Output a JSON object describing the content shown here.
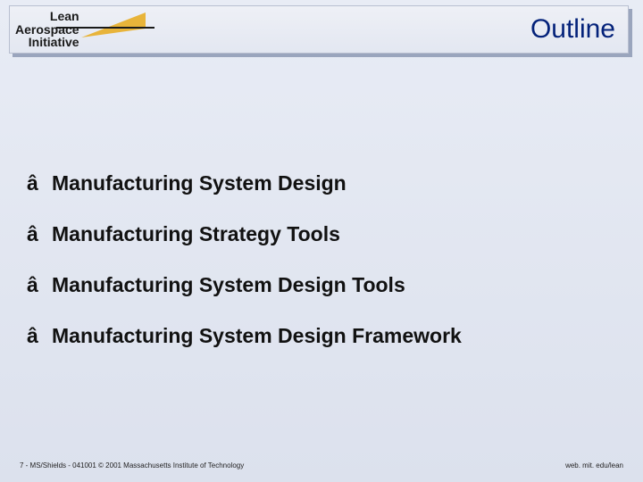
{
  "header": {
    "logo": {
      "line1": "Lean",
      "line2": "Aerospace",
      "line3": "Initiative"
    },
    "title": "Outline"
  },
  "outline": {
    "bullet": "â",
    "items": [
      "Manufacturing System Design",
      "Manufacturing Strategy Tools",
      "Manufacturing System Design Tools",
      "Manufacturing System Design Framework"
    ]
  },
  "footer": {
    "left": "7 - MS/Shields - 041001 © 2001 Massachusetts Institute of Technology",
    "right": "web. mit. edu/lean"
  },
  "style": {
    "background_top": "#e8ecf5",
    "background_bottom": "#dce1ed",
    "header_bg_top": "#eef0f6",
    "header_bg_bottom": "#e3e7f1",
    "header_border": "#b8bfd0",
    "header_shadow": "#9aa5bd",
    "title_color": "#04227a",
    "text_color": "#111111",
    "logo_swoosh": "#e8b43a",
    "title_fontsize": 30,
    "item_fontsize": 23,
    "logo_fontsize": 14,
    "footer_fontsize": 8
  }
}
